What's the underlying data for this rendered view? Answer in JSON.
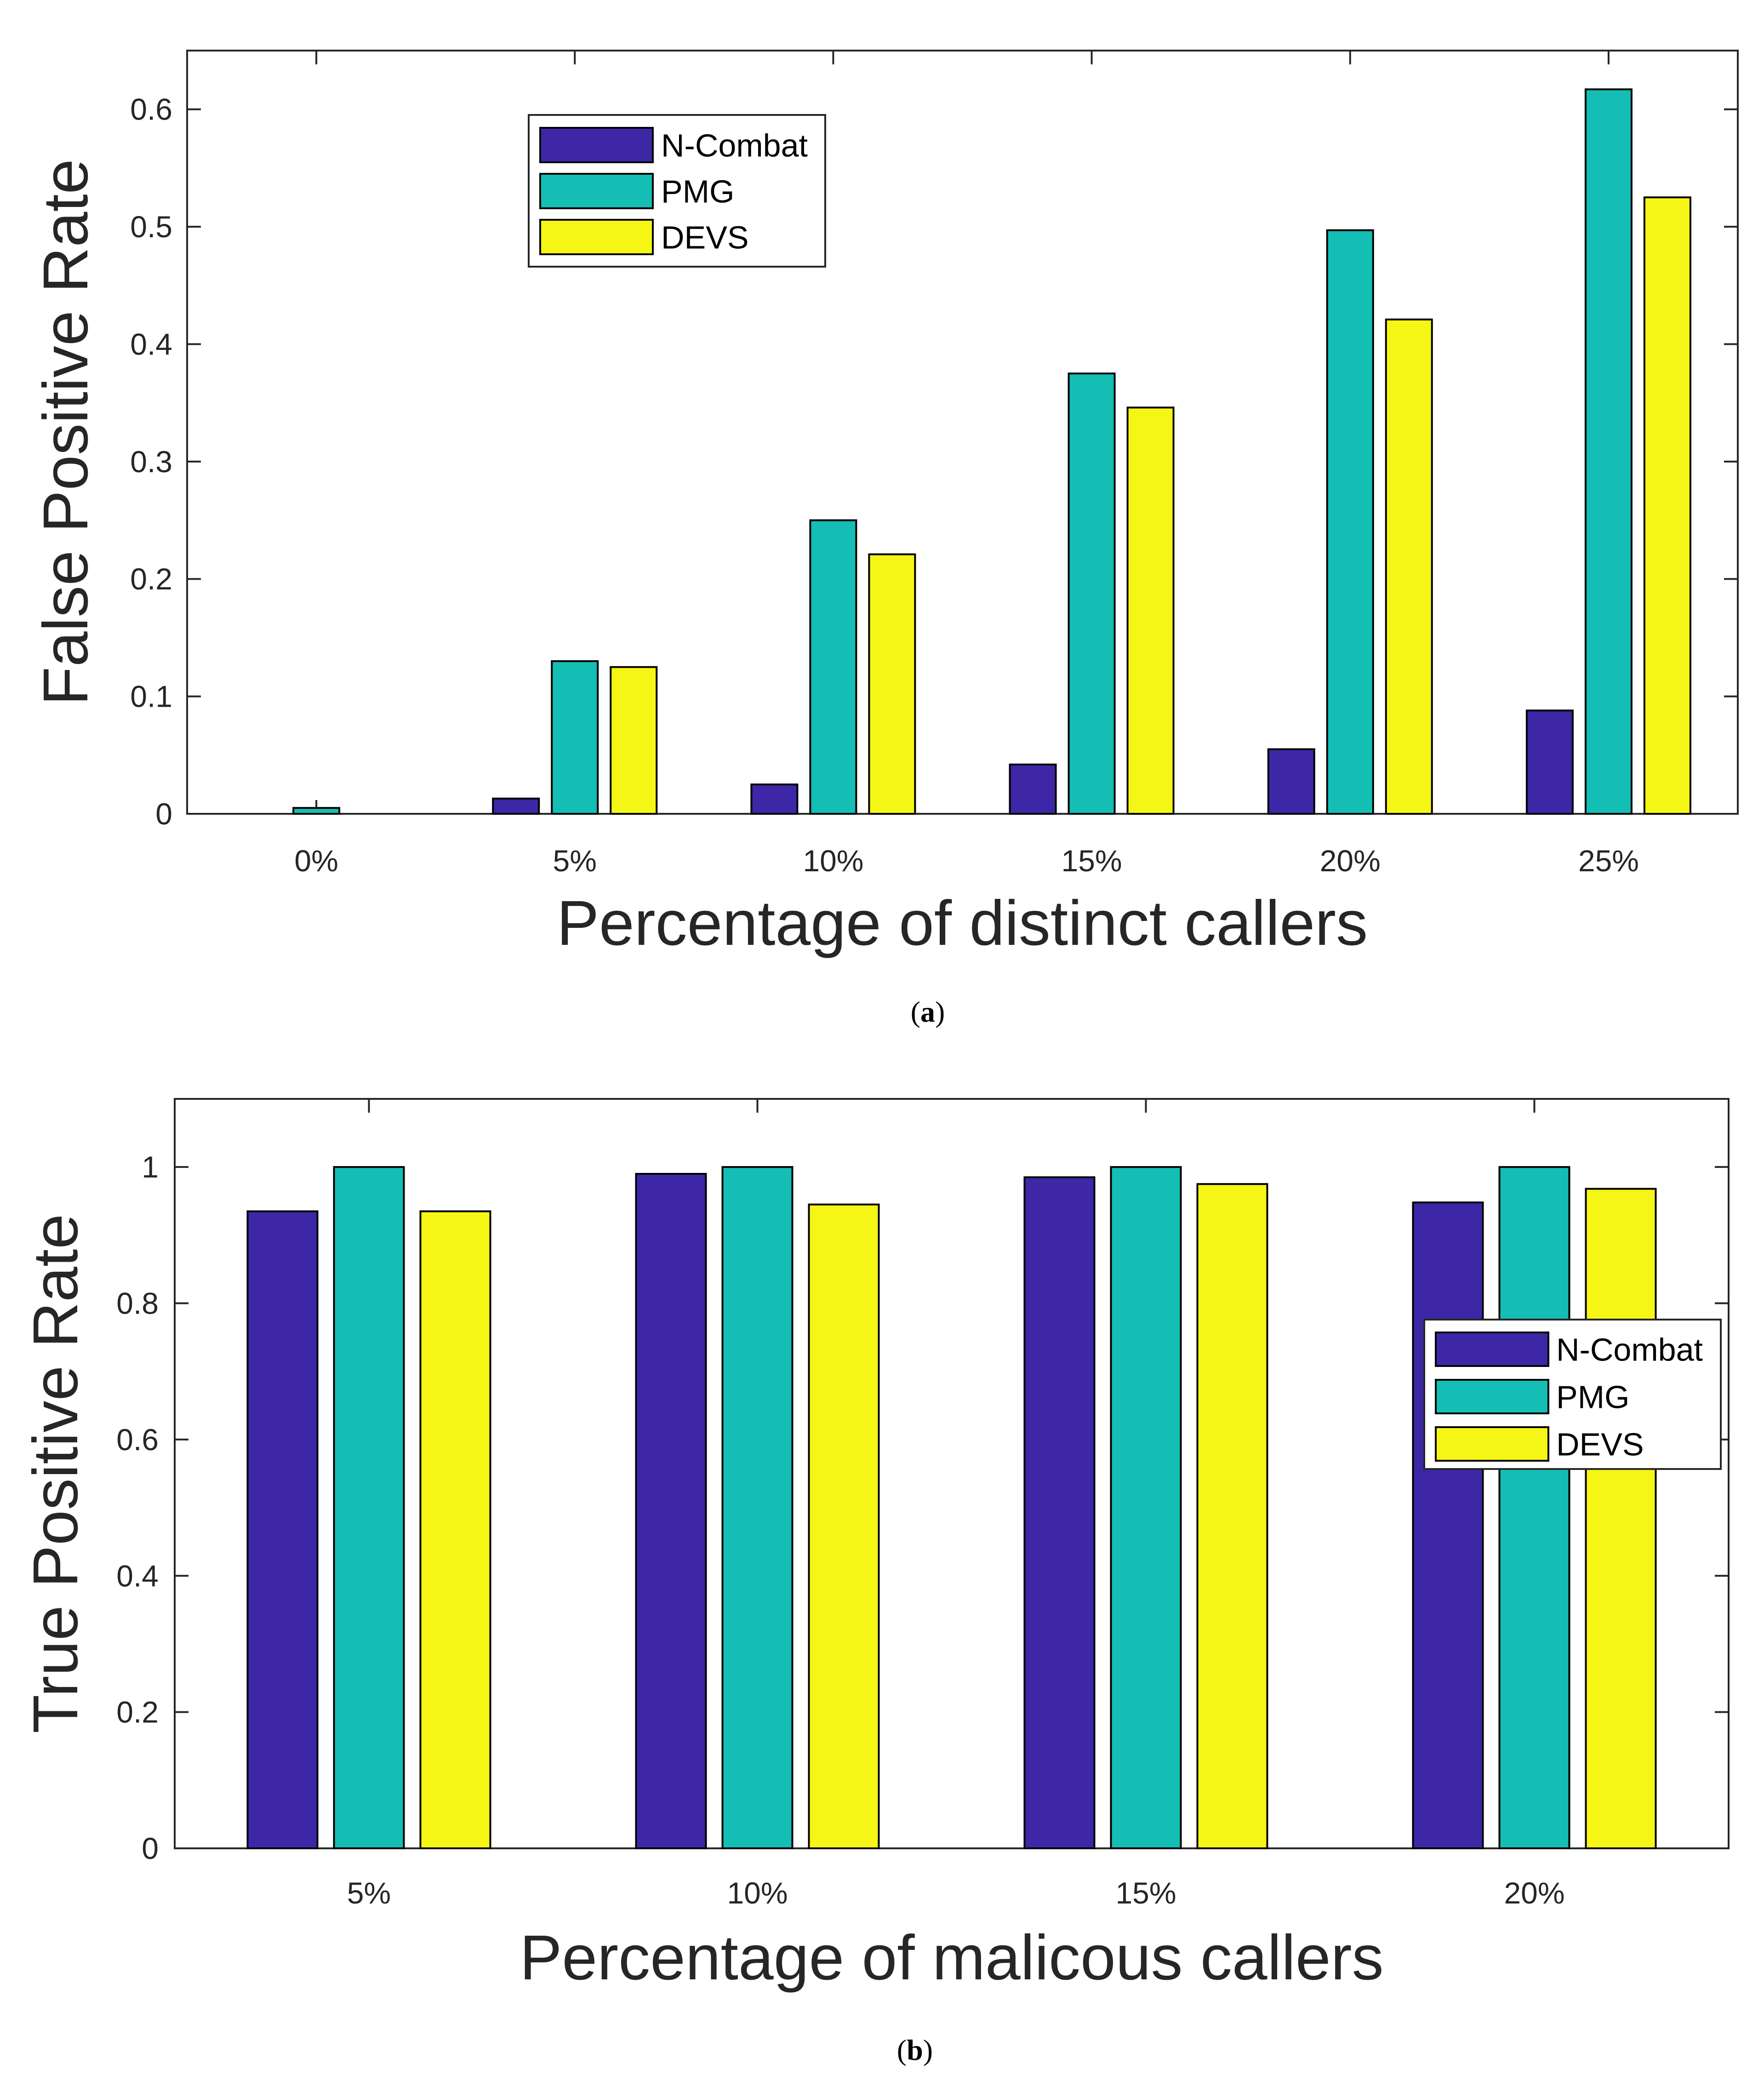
{
  "colors": {
    "N-Combat": "#3d27a6",
    "PMG": "#14beb4",
    "DEVS": "#f5f516",
    "axis": "#262626",
    "bar_edge": "#000000"
  },
  "chart_data": [
    {
      "id": "a",
      "type": "bar",
      "caption_open": "(",
      "caption_letter": "a",
      "caption_close": ")",
      "categories": [
        "0%",
        "5%",
        "10%",
        "15%",
        "20%",
        "25%"
      ],
      "series": [
        {
          "name": "N-Combat",
          "values": [
            0.0,
            0.013,
            0.025,
            0.042,
            0.055,
            0.088
          ]
        },
        {
          "name": "PMG",
          "values": [
            0.005,
            0.13,
            0.25,
            0.375,
            0.497,
            0.617
          ]
        },
        {
          "name": "DEVS",
          "values": [
            0.0,
            0.125,
            0.221,
            0.346,
            0.421,
            0.525
          ]
        }
      ],
      "xlabel": "Percentage of distinct callers",
      "ylabel": "False Positive Rate",
      "ylim": [
        0,
        0.65
      ],
      "yticks": [
        0,
        0.1,
        0.2,
        0.3,
        0.4,
        0.5,
        0.6
      ],
      "ytick_labels": [
        "0",
        "0.1",
        "0.2",
        "0.3",
        "0.4",
        "0.5",
        "0.6"
      ],
      "legend_position": "top-left",
      "grid": false
    },
    {
      "id": "b",
      "type": "bar",
      "caption_open": "(",
      "caption_letter": "b",
      "caption_close": ")",
      "categories": [
        "5%",
        "10%",
        "15%",
        "20%"
      ],
      "series": [
        {
          "name": "N-Combat",
          "values": [
            0.935,
            0.99,
            0.985,
            0.948
          ]
        },
        {
          "name": "PMG",
          "values": [
            1.0,
            1.0,
            1.0,
            1.0
          ]
        },
        {
          "name": "DEVS",
          "values": [
            0.935,
            0.945,
            0.975,
            0.968
          ]
        }
      ],
      "xlabel": "Percentage of malicous callers",
      "ylabel": "True Positive Rate",
      "ylim": [
        0,
        1.1
      ],
      "yticks": [
        0,
        0.2,
        0.4,
        0.6,
        0.8,
        1
      ],
      "ytick_labels": [
        "0",
        "0.2",
        "0.4",
        "0.6",
        "0.8",
        "1"
      ],
      "legend_position": "right",
      "grid": false
    }
  ]
}
